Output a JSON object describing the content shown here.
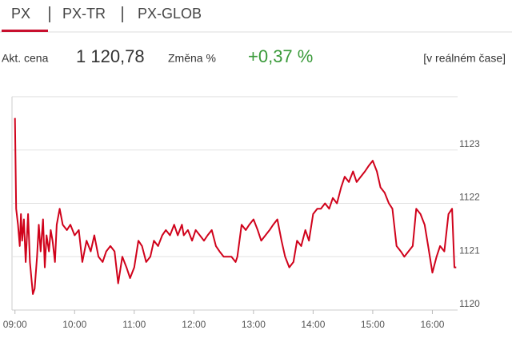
{
  "tabs": [
    "PX",
    "PX-TR",
    "PX-GLOB"
  ],
  "quote": {
    "price_label": "Akt. cena",
    "price": "1 120,78",
    "change_label": "Změna %",
    "change": "+0,37 %",
    "realtime": "[v reálném čase]"
  },
  "chart_data": {
    "type": "line",
    "color": "#d0021b",
    "x": [
      9.0,
      9.02,
      9.05,
      9.08,
      9.1,
      9.12,
      9.15,
      9.18,
      9.22,
      9.25,
      9.3,
      9.33,
      9.37,
      9.4,
      9.43,
      9.47,
      9.5,
      9.53,
      9.57,
      9.6,
      9.63,
      9.67,
      9.7,
      9.75,
      9.8,
      9.87,
      9.93,
      10.0,
      10.07,
      10.13,
      10.2,
      10.27,
      10.33,
      10.4,
      10.47,
      10.53,
      10.6,
      10.67,
      10.73,
      10.8,
      10.87,
      10.93,
      11.0,
      11.07,
      11.13,
      11.2,
      11.27,
      11.33,
      11.4,
      11.47,
      11.53,
      11.6,
      11.67,
      11.73,
      11.8,
      11.83,
      11.9,
      11.97,
      12.03,
      12.1,
      12.17,
      12.23,
      12.3,
      12.37,
      12.43,
      12.5,
      12.57,
      12.63,
      12.7,
      12.73,
      12.8,
      12.87,
      12.93,
      13.0,
      13.07,
      13.13,
      13.2,
      13.27,
      13.33,
      13.4,
      13.47,
      13.53,
      13.6,
      13.67,
      13.73,
      13.8,
      13.87,
      13.93,
      14.0,
      14.07,
      14.13,
      14.2,
      14.27,
      14.33,
      14.4,
      14.47,
      14.53,
      14.6,
      14.67,
      14.73,
      14.8,
      14.87,
      14.93,
      15.0,
      15.07,
      15.13,
      15.2,
      15.27,
      15.33,
      15.4,
      15.47,
      15.53,
      15.6,
      15.67,
      15.73,
      15.8,
      15.87,
      15.93,
      16.0,
      16.07,
      16.13,
      16.2,
      16.27,
      16.33,
      16.37,
      16.4
    ],
    "values": [
      1123.6,
      1121.9,
      1121.6,
      1121.2,
      1121.8,
      1121.3,
      1121.7,
      1120.9,
      1121.8,
      1120.9,
      1120.3,
      1120.4,
      1121.0,
      1121.6,
      1121.1,
      1121.7,
      1120.8,
      1121.4,
      1121.1,
      1121.5,
      1121.3,
      1120.9,
      1121.6,
      1121.9,
      1121.6,
      1121.5,
      1121.6,
      1121.4,
      1121.5,
      1120.9,
      1121.3,
      1121.1,
      1121.4,
      1121.0,
      1120.9,
      1121.1,
      1121.2,
      1121.1,
      1120.5,
      1121.0,
      1120.8,
      1120.6,
      1120.8,
      1121.3,
      1121.2,
      1120.9,
      1121.0,
      1121.3,
      1121.2,
      1121.4,
      1121.5,
      1121.4,
      1121.6,
      1121.4,
      1121.6,
      1121.4,
      1121.5,
      1121.3,
      1121.5,
      1121.4,
      1121.3,
      1121.4,
      1121.5,
      1121.2,
      1121.1,
      1121.0,
      1121.0,
      1121.0,
      1120.9,
      1121.0,
      1121.6,
      1121.5,
      1121.6,
      1121.7,
      1121.5,
      1121.3,
      1121.4,
      1121.5,
      1121.6,
      1121.7,
      1121.3,
      1121.0,
      1120.8,
      1120.9,
      1121.3,
      1121.2,
      1121.5,
      1121.3,
      1121.8,
      1121.9,
      1121.9,
      1122.0,
      1121.9,
      1122.1,
      1122.0,
      1122.3,
      1122.5,
      1122.4,
      1122.6,
      1122.4,
      1122.5,
      1122.6,
      1122.7,
      1122.8,
      1122.6,
      1122.3,
      1122.2,
      1122.0,
      1121.9,
      1121.2,
      1121.1,
      1121.0,
      1121.1,
      1121.2,
      1121.9,
      1121.8,
      1121.6,
      1121.2,
      1120.7,
      1121.0,
      1121.2,
      1121.1,
      1121.8,
      1121.9,
      1120.8,
      1120.8
    ],
    "xlim": [
      8.95,
      16.45
    ],
    "xticks": [
      {
        "value": 9,
        "label": "09:00"
      },
      {
        "value": 10,
        "label": "10:00"
      },
      {
        "value": 11,
        "label": "11:00"
      },
      {
        "value": 12,
        "label": "12:00"
      },
      {
        "value": 13,
        "label": "13:00"
      },
      {
        "value": 14,
        "label": "14:00"
      },
      {
        "value": 15,
        "label": "15:00"
      },
      {
        "value": 16,
        "label": "16:00"
      }
    ],
    "ylim": [
      1120,
      1124
    ],
    "yticks": [
      1120,
      1121,
      1122,
      1123
    ],
    "grid": true
  }
}
